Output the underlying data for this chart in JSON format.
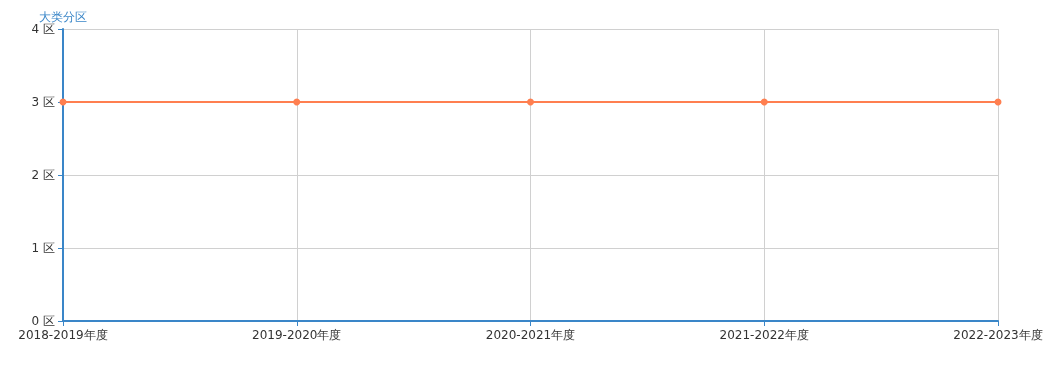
{
  "chart_data": {
    "type": "line",
    "ylabel": "大类分区",
    "categories": [
      "2018-2019年度",
      "2019-2020年度",
      "2020-2021年度",
      "2021-2022年度",
      "2022-2023年度"
    ],
    "series": [
      {
        "color": "#ff7f50",
        "values": [
          3,
          3,
          3,
          3,
          3
        ]
      }
    ],
    "ylim": [
      0,
      4
    ],
    "yticks": [
      {
        "value": 0,
        "label": "0 区"
      },
      {
        "value": 1,
        "label": "1 区"
      },
      {
        "value": 2,
        "label": "2 区"
      },
      {
        "value": 3,
        "label": "3 区"
      },
      {
        "value": 4,
        "label": "4 区"
      }
    ],
    "grid": true,
    "marker": "circle",
    "line_style": "solid"
  }
}
